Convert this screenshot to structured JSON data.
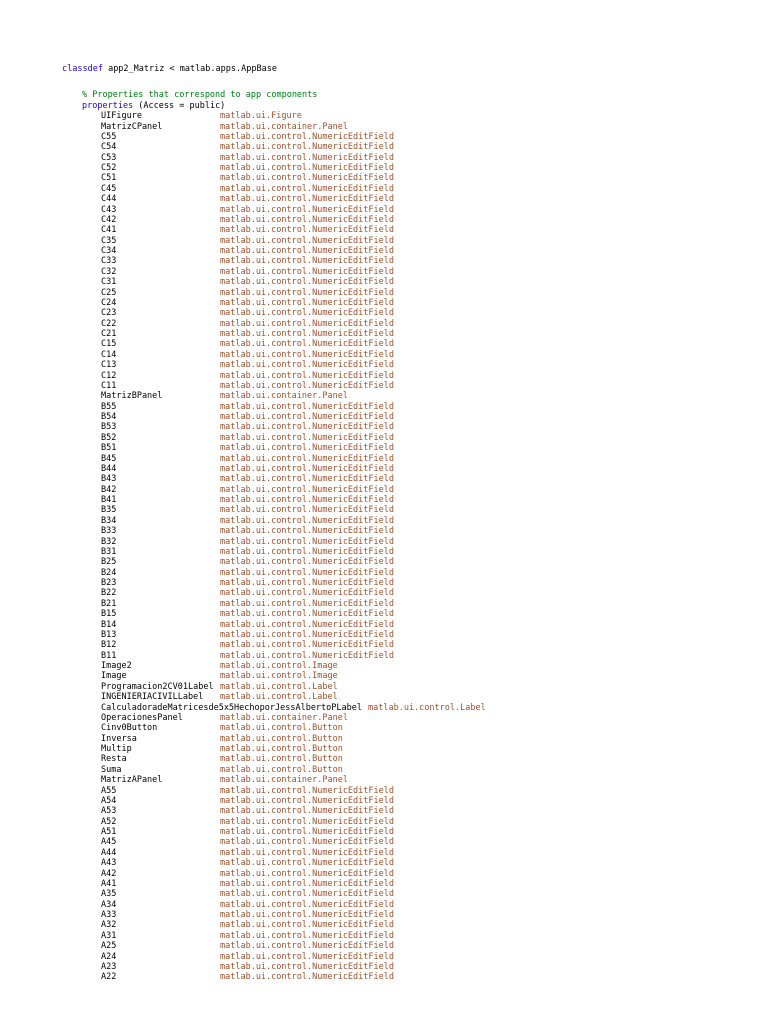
{
  "header": {
    "keyword": "classdef",
    "rest": " app2_Matriz < matlab.apps.AppBase"
  },
  "comment": "% Properties that correspond to app components",
  "properties_line": {
    "keyword": "properties",
    "rest": " (Access = public)"
  },
  "props": [
    {
      "name": "UIFigure",
      "type": "matlab.ui.Figure"
    },
    {
      "name": "MatrizCPanel",
      "type": "matlab.ui.container.Panel"
    },
    {
      "name": "C55",
      "type": "matlab.ui.control.NumericEditField"
    },
    {
      "name": "C54",
      "type": "matlab.ui.control.NumericEditField"
    },
    {
      "name": "C53",
      "type": "matlab.ui.control.NumericEditField"
    },
    {
      "name": "C52",
      "type": "matlab.ui.control.NumericEditField"
    },
    {
      "name": "C51",
      "type": "matlab.ui.control.NumericEditField"
    },
    {
      "name": "C45",
      "type": "matlab.ui.control.NumericEditField"
    },
    {
      "name": "C44",
      "type": "matlab.ui.control.NumericEditField"
    },
    {
      "name": "C43",
      "type": "matlab.ui.control.NumericEditField"
    },
    {
      "name": "C42",
      "type": "matlab.ui.control.NumericEditField"
    },
    {
      "name": "C41",
      "type": "matlab.ui.control.NumericEditField"
    },
    {
      "name": "C35",
      "type": "matlab.ui.control.NumericEditField"
    },
    {
      "name": "C34",
      "type": "matlab.ui.control.NumericEditField"
    },
    {
      "name": "C33",
      "type": "matlab.ui.control.NumericEditField"
    },
    {
      "name": "C32",
      "type": "matlab.ui.control.NumericEditField"
    },
    {
      "name": "C31",
      "type": "matlab.ui.control.NumericEditField"
    },
    {
      "name": "C25",
      "type": "matlab.ui.control.NumericEditField"
    },
    {
      "name": "C24",
      "type": "matlab.ui.control.NumericEditField"
    },
    {
      "name": "C23",
      "type": "matlab.ui.control.NumericEditField"
    },
    {
      "name": "C22",
      "type": "matlab.ui.control.NumericEditField"
    },
    {
      "name": "C21",
      "type": "matlab.ui.control.NumericEditField"
    },
    {
      "name": "C15",
      "type": "matlab.ui.control.NumericEditField"
    },
    {
      "name": "C14",
      "type": "matlab.ui.control.NumericEditField"
    },
    {
      "name": "C13",
      "type": "matlab.ui.control.NumericEditField"
    },
    {
      "name": "C12",
      "type": "matlab.ui.control.NumericEditField"
    },
    {
      "name": "C11",
      "type": "matlab.ui.control.NumericEditField"
    },
    {
      "name": "MatrizBPanel",
      "type": "matlab.ui.container.Panel"
    },
    {
      "name": "B55",
      "type": "matlab.ui.control.NumericEditField"
    },
    {
      "name": "B54",
      "type": "matlab.ui.control.NumericEditField"
    },
    {
      "name": "B53",
      "type": "matlab.ui.control.NumericEditField"
    },
    {
      "name": "B52",
      "type": "matlab.ui.control.NumericEditField"
    },
    {
      "name": "B51",
      "type": "matlab.ui.control.NumericEditField"
    },
    {
      "name": "B45",
      "type": "matlab.ui.control.NumericEditField"
    },
    {
      "name": "B44",
      "type": "matlab.ui.control.NumericEditField"
    },
    {
      "name": "B43",
      "type": "matlab.ui.control.NumericEditField"
    },
    {
      "name": "B42",
      "type": "matlab.ui.control.NumericEditField"
    },
    {
      "name": "B41",
      "type": "matlab.ui.control.NumericEditField"
    },
    {
      "name": "B35",
      "type": "matlab.ui.control.NumericEditField"
    },
    {
      "name": "B34",
      "type": "matlab.ui.control.NumericEditField"
    },
    {
      "name": "B33",
      "type": "matlab.ui.control.NumericEditField"
    },
    {
      "name": "B32",
      "type": "matlab.ui.control.NumericEditField"
    },
    {
      "name": "B31",
      "type": "matlab.ui.control.NumericEditField"
    },
    {
      "name": "B25",
      "type": "matlab.ui.control.NumericEditField"
    },
    {
      "name": "B24",
      "type": "matlab.ui.control.NumericEditField"
    },
    {
      "name": "B23",
      "type": "matlab.ui.control.NumericEditField"
    },
    {
      "name": "B22",
      "type": "matlab.ui.control.NumericEditField"
    },
    {
      "name": "B21",
      "type": "matlab.ui.control.NumericEditField"
    },
    {
      "name": "B15",
      "type": "matlab.ui.control.NumericEditField"
    },
    {
      "name": "B14",
      "type": "matlab.ui.control.NumericEditField"
    },
    {
      "name": "B13",
      "type": "matlab.ui.control.NumericEditField"
    },
    {
      "name": "B12",
      "type": "matlab.ui.control.NumericEditField"
    },
    {
      "name": "B11",
      "type": "matlab.ui.control.NumericEditField"
    },
    {
      "name": "Image2",
      "type": "matlab.ui.control.Image"
    },
    {
      "name": "Image",
      "type": "matlab.ui.control.Image"
    },
    {
      "name": "Programacion2CV01Label",
      "type": "matlab.ui.control.Label"
    },
    {
      "name": "INGENIERIACIVILLabel",
      "type": "matlab.ui.control.Label"
    },
    {
      "name": "CalculadoradeMatricesde5x5HechoporJessAlbertoPLabel",
      "type": "matlab.ui.control.Label",
      "long": true
    },
    {
      "name": "OperacionesPanel",
      "type": "matlab.ui.container.Panel"
    },
    {
      "name": "Cinv0Button",
      "type": "matlab.ui.control.Button"
    },
    {
      "name": "Inversa",
      "type": "matlab.ui.control.Button"
    },
    {
      "name": "Multip",
      "type": "matlab.ui.control.Button"
    },
    {
      "name": "Resta",
      "type": "matlab.ui.control.Button"
    },
    {
      "name": "Suma",
      "type": "matlab.ui.control.Button"
    },
    {
      "name": "MatrizAPanel",
      "type": "matlab.ui.container.Panel"
    },
    {
      "name": "A55",
      "type": "matlab.ui.control.NumericEditField"
    },
    {
      "name": "A54",
      "type": "matlab.ui.control.NumericEditField"
    },
    {
      "name": "A53",
      "type": "matlab.ui.control.NumericEditField"
    },
    {
      "name": "A52",
      "type": "matlab.ui.control.NumericEditField"
    },
    {
      "name": "A51",
      "type": "matlab.ui.control.NumericEditField"
    },
    {
      "name": "A45",
      "type": "matlab.ui.control.NumericEditField"
    },
    {
      "name": "A44",
      "type": "matlab.ui.control.NumericEditField"
    },
    {
      "name": "A43",
      "type": "matlab.ui.control.NumericEditField"
    },
    {
      "name": "A42",
      "type": "matlab.ui.control.NumericEditField"
    },
    {
      "name": "A41",
      "type": "matlab.ui.control.NumericEditField"
    },
    {
      "name": "A35",
      "type": "matlab.ui.control.NumericEditField"
    },
    {
      "name": "A34",
      "type": "matlab.ui.control.NumericEditField"
    },
    {
      "name": "A33",
      "type": "matlab.ui.control.NumericEditField"
    },
    {
      "name": "A32",
      "type": "matlab.ui.control.NumericEditField"
    },
    {
      "name": "A31",
      "type": "matlab.ui.control.NumericEditField"
    },
    {
      "name": "A25",
      "type": "matlab.ui.control.NumericEditField"
    },
    {
      "name": "A24",
      "type": "matlab.ui.control.NumericEditField"
    },
    {
      "name": "A23",
      "type": "matlab.ui.control.NumericEditField"
    },
    {
      "name": "A22",
      "type": "matlab.ui.control.NumericEditField"
    }
  ],
  "colors": {
    "keyword": "#1c00cf",
    "comment": "#008013",
    "type": "#a0522d",
    "text": "#000000"
  }
}
